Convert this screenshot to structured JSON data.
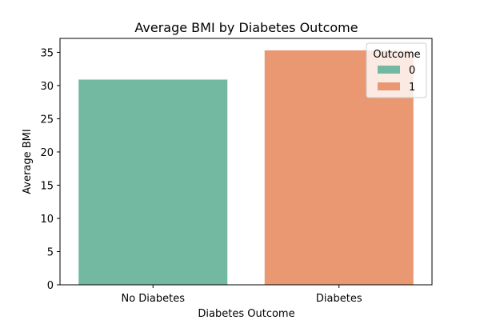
{
  "chart_data": {
    "type": "bar",
    "title": "Average BMI by Diabetes Outcome",
    "xlabel": "Diabetes Outcome",
    "ylabel": "Average BMI",
    "categories": [
      "No Diabetes",
      "Diabetes"
    ],
    "values": [
      30.9,
      35.3
    ],
    "ylim": [
      0,
      37.1
    ],
    "yticks": [
      0,
      5,
      10,
      15,
      20,
      25,
      30,
      35
    ],
    "grid": false,
    "legend": {
      "title": "Outcome",
      "placement": "top-right",
      "entries": [
        "0",
        "1"
      ]
    },
    "colors": [
      "#73b8a1",
      "#e99872"
    ]
  }
}
